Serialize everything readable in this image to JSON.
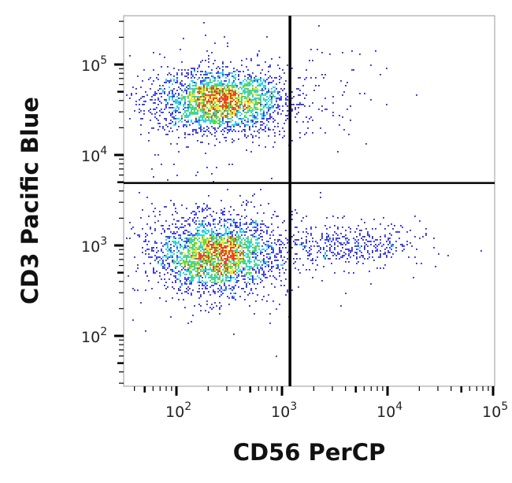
{
  "chart_data": {
    "type": "scatter",
    "subtype": "flow-cytometry-density-dot-plot",
    "xlabel": "CD56 PerCP",
    "ylabel": "CD3 Pacific Blue",
    "xscale": "log",
    "yscale": "log",
    "xlim": [
      32,
      110000
    ],
    "ylim": [
      32,
      340000
    ],
    "xticks": [
      {
        "base": "10",
        "exp": "2",
        "value": 100
      },
      {
        "base": "10",
        "exp": "3",
        "value": 1000
      },
      {
        "base": "10",
        "exp": "4",
        "value": 10000
      },
      {
        "base": "10",
        "exp": "5",
        "value": 100000
      }
    ],
    "yticks": [
      {
        "base": "10",
        "exp": "2",
        "value": 100
      },
      {
        "base": "10",
        "exp": "3",
        "value": 1000
      },
      {
        "base": "10",
        "exp": "4",
        "value": 10000
      },
      {
        "base": "10",
        "exp": "5",
        "value": 100000
      }
    ],
    "grid": false,
    "legend": "none",
    "quadrant_gates": {
      "x": 1190,
      "y": 4900
    },
    "density_colors": [
      "#1a1adf",
      "#00c8e0",
      "#30d030",
      "#f0e000",
      "#e02000"
    ],
    "populations": [
      {
        "quadrant": "upper-left",
        "center": [
          260,
          40000
        ],
        "spread_decades": [
          0.3,
          0.17
        ],
        "events": 2400
      },
      {
        "quadrant": "lower-left",
        "center": [
          240,
          800
        ],
        "spread_decades": [
          0.28,
          0.2
        ],
        "events": 2600
      },
      {
        "quadrant": "lower-right",
        "center": [
          4000,
          1000
        ],
        "spread_decades": [
          0.3,
          0.11
        ],
        "events": 420
      },
      {
        "quadrant": "upper-right",
        "center": [
          3000,
          60000
        ],
        "spread_decades": [
          0.3,
          0.25
        ],
        "events": 50
      }
    ]
  }
}
